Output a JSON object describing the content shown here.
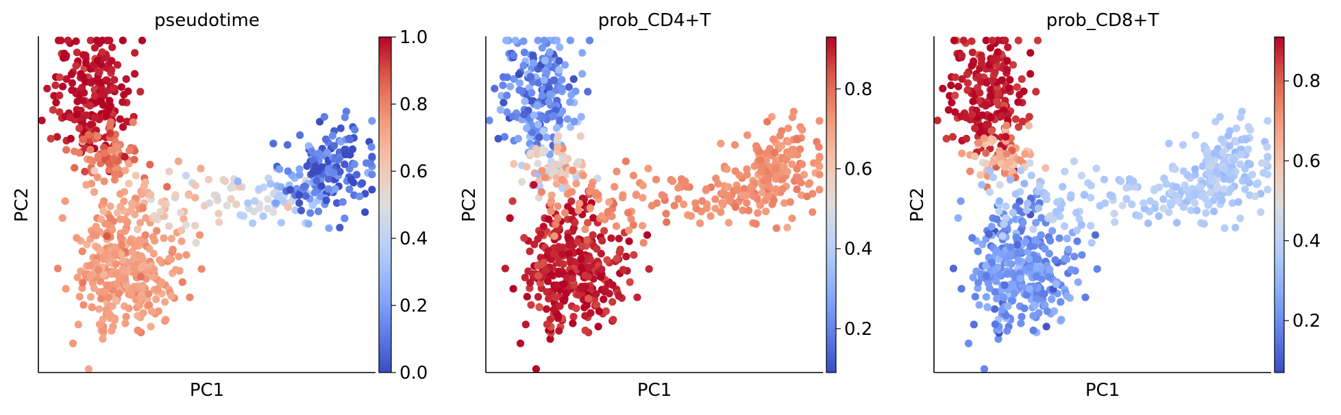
{
  "chart_data": [
    {
      "type": "scatter",
      "title": "pseudotime",
      "xlabel": "PC1",
      "ylabel": "PC2",
      "xticks": [],
      "yticks": [],
      "colorbar": {
        "min": 0.0,
        "max": 1.0,
        "ticks": [
          "0.0",
          "0.2",
          "0.4",
          "0.6",
          "0.8",
          "1.0"
        ],
        "tick_values": [
          0.0,
          0.2,
          0.4,
          0.6,
          0.8,
          1.0
        ],
        "colormap": "coolwarm"
      },
      "groups": [
        {
          "region": "top-left cluster",
          "count": 210,
          "center": [
            -3.0,
            3.2
          ],
          "spread": [
            0.55,
            0.9
          ],
          "value": 0.98,
          "value_jitter": 0.03
        },
        {
          "region": "upper stem",
          "count": 70,
          "center": [
            -2.6,
            1.4
          ],
          "spread": [
            0.5,
            0.4
          ],
          "value": 0.82,
          "value_jitter": 0.05
        },
        {
          "region": "bottom-left cluster",
          "count": 340,
          "center": [
            -2.0,
            -1.8
          ],
          "spread": [
            0.7,
            0.85
          ],
          "value": 0.74,
          "value_jitter": 0.03
        },
        {
          "region": "middle bridge",
          "count": 130,
          "center": [
            0.4,
            0.2
          ],
          "spread": [
            2.3,
            0.45
          ],
          "value": 0.55,
          "value_jitter": 0.08,
          "value_slope": -0.07
        },
        {
          "region": "right cluster",
          "count": 160,
          "center": [
            3.8,
            0.9
          ],
          "spread": [
            0.65,
            0.7
          ],
          "value": 0.1,
          "value_jitter": 0.08
        }
      ]
    },
    {
      "type": "scatter",
      "title": "prob_CD4+T",
      "xlabel": "PC1",
      "ylabel": "PC2",
      "xticks": [],
      "yticks": [],
      "colorbar": {
        "min": 0.09,
        "max": 0.93,
        "ticks": [
          "0.2",
          "0.4",
          "0.6",
          "0.8"
        ],
        "tick_values": [
          0.2,
          0.4,
          0.6,
          0.8
        ],
        "colormap": "coolwarm"
      },
      "groups": [
        {
          "region": "top-left cluster",
          "count": 210,
          "center": [
            -3.0,
            3.2
          ],
          "spread": [
            0.55,
            0.9
          ],
          "value": 0.22,
          "value_jitter": 0.07
        },
        {
          "region": "upper stem",
          "count": 70,
          "center": [
            -2.6,
            1.0
          ],
          "spread": [
            0.5,
            0.4
          ],
          "value": 0.55,
          "value_jitter": 0.08
        },
        {
          "region": "bottom-left cluster",
          "count": 340,
          "center": [
            -2.0,
            -1.8
          ],
          "spread": [
            0.7,
            0.85
          ],
          "value": 0.9,
          "value_jitter": 0.03
        },
        {
          "region": "middle bridge",
          "count": 130,
          "center": [
            0.4,
            0.2
          ],
          "spread": [
            2.3,
            0.45
          ],
          "value": 0.74,
          "value_jitter": 0.02
        },
        {
          "region": "right cluster",
          "count": 160,
          "center": [
            3.8,
            0.9
          ],
          "spread": [
            0.65,
            0.7
          ],
          "value": 0.74,
          "value_jitter": 0.02
        }
      ]
    },
    {
      "type": "scatter",
      "title": "prob_CD8+T",
      "xlabel": "PC1",
      "ylabel": "PC2",
      "xticks": [],
      "yticks": [],
      "colorbar": {
        "min": 0.07,
        "max": 0.91,
        "ticks": [
          "0.2",
          "0.4",
          "0.6",
          "0.8"
        ],
        "tick_values": [
          0.2,
          0.4,
          0.6,
          0.8
        ],
        "colormap": "coolwarm"
      },
      "groups": [
        {
          "region": "top-left cluster",
          "count": 210,
          "center": [
            -3.0,
            3.2
          ],
          "spread": [
            0.55,
            0.9
          ],
          "value": 0.88,
          "value_jitter": 0.03
        },
        {
          "region": "upper stem",
          "count": 70,
          "center": [
            -2.6,
            1.3
          ],
          "spread": [
            0.5,
            0.4
          ],
          "value": 0.65,
          "value_jitter": 0.08
        },
        {
          "region": "bottom-left cluster",
          "count": 340,
          "center": [
            -2.0,
            -1.8
          ],
          "spread": [
            0.7,
            0.85
          ],
          "value": 0.22,
          "value_jitter": 0.05
        },
        {
          "region": "middle bridge",
          "count": 130,
          "center": [
            0.4,
            0.2
          ],
          "spread": [
            2.3,
            0.45
          ],
          "value": 0.37,
          "value_jitter": 0.03
        },
        {
          "region": "right cluster",
          "count": 160,
          "center": [
            3.8,
            0.9
          ],
          "spread": [
            0.65,
            0.7
          ],
          "value": 0.37,
          "value_jitter": 0.03
        }
      ]
    }
  ]
}
